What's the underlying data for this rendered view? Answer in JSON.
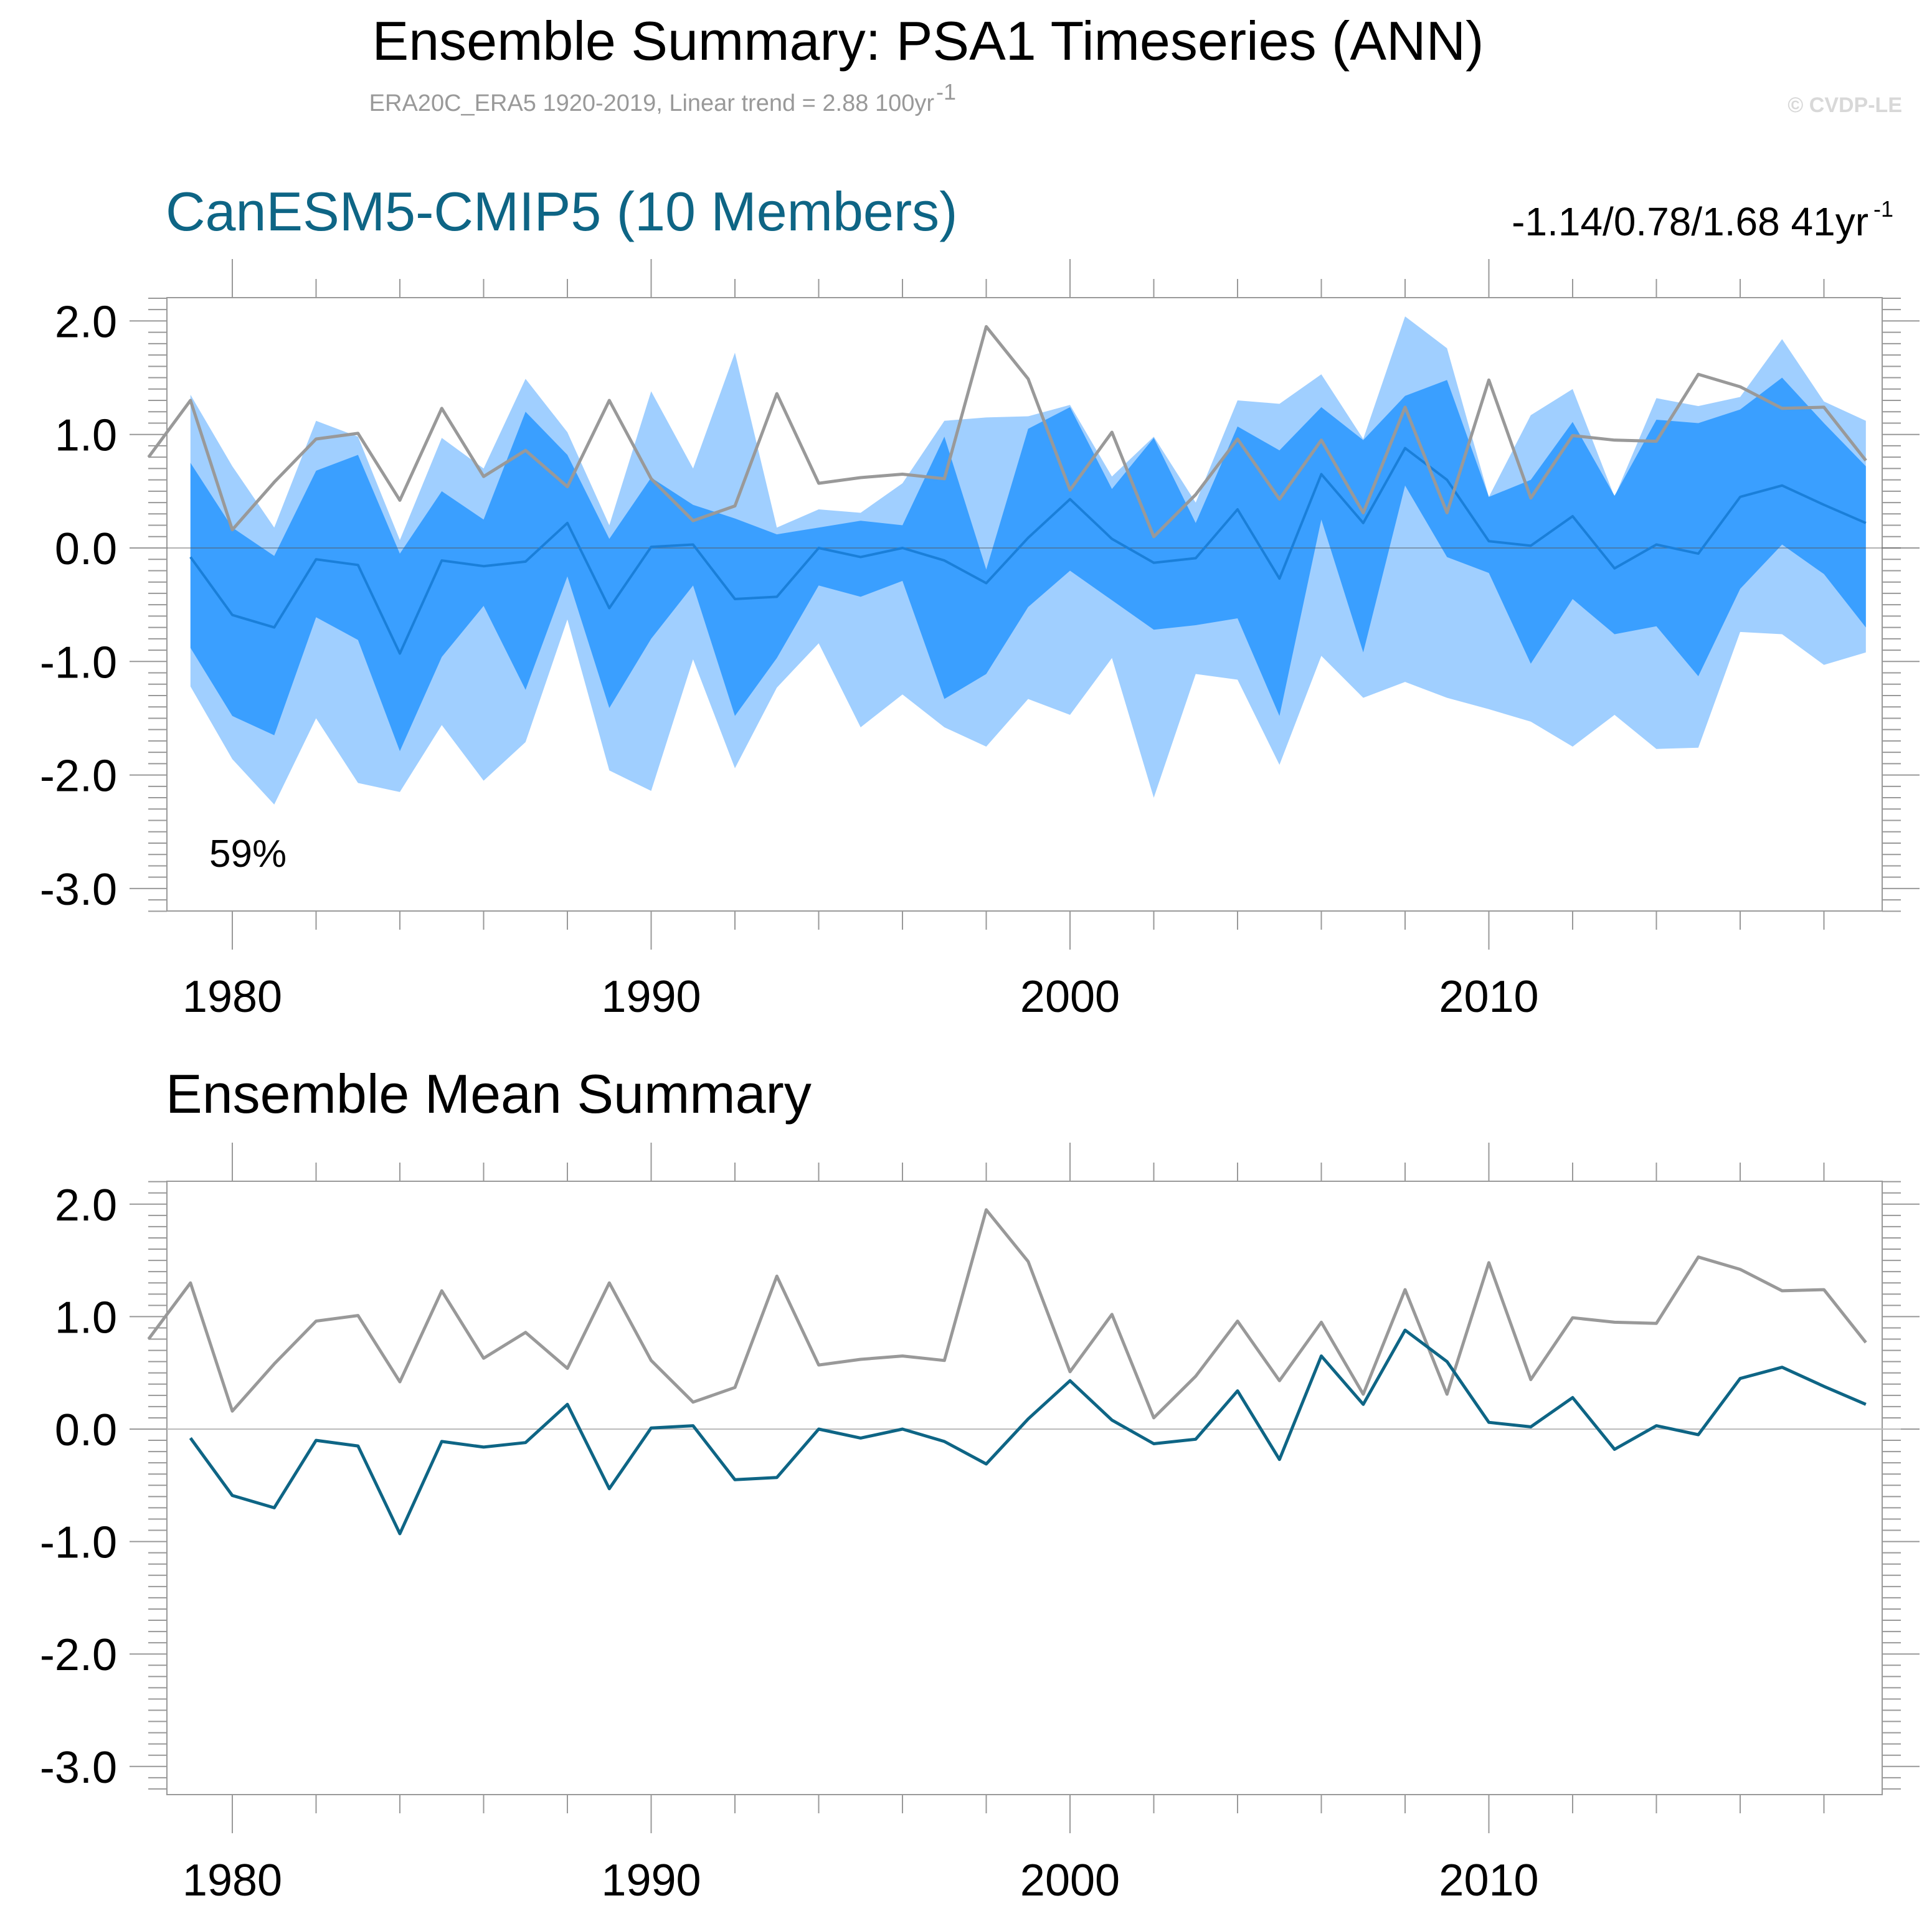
{
  "header": {
    "title": "Ensemble Summary: PSA1 Timeseries (ANN)",
    "subtitle": "ERA20C_ERA5 1920-2019, Linear trend = 2.88 100yr",
    "subtitle_sup": "-1",
    "copyright": "© CVDP-LE"
  },
  "panel1": {
    "title": "CanESM5-CMIP5 (10 Members)",
    "trend_stats": "-1.14/0.78/1.68 41yr",
    "trend_sup": "-1",
    "percent_label": "59%"
  },
  "panel2": {
    "title": "Ensemble Mean Summary"
  },
  "colors": {
    "outer_band": "#a0cfff",
    "inner_band": "#3a9fff",
    "ensemble_mean_panel1": "#1a7fd9",
    "ensemble_mean_panel2": "#0e6585",
    "observed": "#999999",
    "zero_line": "#bbbbbb",
    "frame": "#999999"
  },
  "chart_data": [
    {
      "type": "area",
      "title": "CanESM5-CMIP5 (10 Members)",
      "xlabel": "",
      "ylabel": "",
      "xlim": [
        1978,
        2019
      ],
      "ylim": [
        -3.2,
        2.2
      ],
      "xticks": [
        1980,
        1990,
        2000,
        2010
      ],
      "xtick_labels": [
        "1980",
        "1990",
        "2000",
        "2010"
      ],
      "yticks": [
        2,
        1,
        0,
        -1,
        -2,
        -3
      ],
      "ytick_labels": [
        "2.0",
        "1.0",
        "0.0",
        "-1.0",
        "-2.0",
        "-3.0"
      ],
      "years": [
        1979,
        1980,
        1981,
        1982,
        1983,
        1984,
        1985,
        1986,
        1987,
        1988,
        1989,
        1990,
        1991,
        1992,
        1993,
        1994,
        1995,
        1996,
        1997,
        1998,
        1999,
        2000,
        2001,
        2002,
        2003,
        2004,
        2005,
        2006,
        2007,
        2008,
        2009,
        2010,
        2011,
        2012,
        2013,
        2014,
        2015,
        2016,
        2017,
        2018,
        2019
      ],
      "series": [
        {
          "name": "ensemble max",
          "values": [
            1.35,
            0.72,
            0.18,
            1.12,
            0.98,
            0.07,
            0.97,
            0.7,
            1.49,
            1.02,
            0.2,
            1.38,
            0.7,
            1.72,
            0.18,
            0.34,
            0.31,
            0.57,
            1.12,
            1.15,
            1.16,
            1.26,
            0.63,
            0.98,
            0.4,
            1.3,
            1.27,
            1.53,
            0.96,
            2.04,
            1.76,
            0.45,
            1.17,
            1.4,
            0.45,
            1.32,
            1.25,
            1.33,
            1.84,
            1.29,
            1.12
          ]
        },
        {
          "name": "upper 90%",
          "values": [
            0.75,
            0.18,
            -0.07,
            0.68,
            0.82,
            -0.05,
            0.5,
            0.25,
            1.2,
            0.82,
            0.08,
            0.62,
            0.38,
            0.26,
            0.12,
            0.18,
            0.24,
            0.2,
            0.98,
            -0.19,
            1.05,
            1.24,
            0.52,
            0.97,
            0.22,
            1.07,
            0.86,
            1.24,
            0.95,
            1.34,
            1.48,
            0.45,
            0.6,
            1.11,
            0.46,
            1.13,
            1.1,
            1.22,
            1.5,
            1.1,
            0.72
          ]
        },
        {
          "name": "ensemble mean",
          "values": [
            -0.08,
            -0.59,
            -0.7,
            -0.1,
            -0.15,
            -0.93,
            -0.11,
            -0.16,
            -0.12,
            0.22,
            -0.53,
            0.01,
            0.03,
            -0.45,
            -0.43,
            0.0,
            -0.08,
            0.0,
            -0.11,
            -0.31,
            0.09,
            0.43,
            0.08,
            -0.13,
            -0.09,
            0.34,
            -0.27,
            0.65,
            0.22,
            0.88,
            0.6,
            0.06,
            0.02,
            0.28,
            -0.18,
            0.03,
            -0.05,
            0.45,
            0.55,
            0.38,
            0.22
          ]
        },
        {
          "name": "lower 10%",
          "values": [
            -0.88,
            -1.48,
            -1.65,
            -0.61,
            -0.81,
            -1.79,
            -0.96,
            -0.51,
            -1.25,
            -0.25,
            -1.41,
            -0.8,
            -0.33,
            -1.48,
            -0.97,
            -0.33,
            -0.43,
            -0.29,
            -1.33,
            -1.11,
            -0.52,
            -0.2,
            -0.46,
            -0.72,
            -0.68,
            -0.62,
            -1.48,
            0.25,
            -0.92,
            0.55,
            -0.08,
            -0.22,
            -1.02,
            -0.45,
            -0.76,
            -0.69,
            -1.13,
            -0.36,
            0.03,
            -0.23,
            -0.7
          ]
        },
        {
          "name": "ensemble min",
          "values": [
            -1.22,
            -1.86,
            -2.26,
            -1.5,
            -2.07,
            -2.15,
            -1.56,
            -2.05,
            -1.71,
            -0.63,
            -1.96,
            -2.14,
            -0.98,
            -1.94,
            -1.23,
            -0.84,
            -1.58,
            -1.29,
            -1.58,
            -1.75,
            -1.33,
            -1.47,
            -0.97,
            -2.2,
            -1.11,
            -1.16,
            -1.91,
            -0.95,
            -1.32,
            -1.18,
            -1.32,
            -1.42,
            -1.53,
            -1.75,
            -1.47,
            -1.77,
            -1.76,
            -0.74,
            -0.76,
            -1.03,
            -0.92
          ]
        },
        {
          "name": "observed (ERA20C_ERA5)",
          "x": [
            1978,
            1979,
            1980,
            1981,
            1982,
            1983,
            1984,
            1985,
            1986,
            1987,
            1988,
            1989,
            1990,
            1991,
            1992,
            1993,
            1994,
            1995,
            1996,
            1997,
            1998,
            1999,
            2000,
            2001,
            2002,
            2003,
            2004,
            2005,
            2006,
            2007,
            2008,
            2009,
            2010,
            2011,
            2012,
            2013,
            2014,
            2015,
            2016,
            2017,
            2018,
            2019
          ],
          "values": [
            0.8,
            1.3,
            0.16,
            0.58,
            0.96,
            1.01,
            0.42,
            1.23,
            0.63,
            0.86,
            0.54,
            1.3,
            0.61,
            0.24,
            0.37,
            1.36,
            0.57,
            0.62,
            0.65,
            0.61,
            1.95,
            1.49,
            0.51,
            1.02,
            0.1,
            0.47,
            0.96,
            0.43,
            0.95,
            0.31,
            1.24,
            0.31,
            1.48,
            0.44,
            0.99,
            0.95,
            0.94,
            1.53,
            1.42,
            1.23,
            1.24,
            0.77
          ]
        }
      ]
    },
    {
      "type": "line",
      "title": "Ensemble Mean Summary",
      "xlabel": "",
      "ylabel": "",
      "xlim": [
        1978,
        2019
      ],
      "ylim": [
        -3.2,
        2.2
      ],
      "xticks": [
        1980,
        1990,
        2000,
        2010
      ],
      "xtick_labels": [
        "1980",
        "1990",
        "2000",
        "2010"
      ],
      "yticks": [
        2,
        1,
        0,
        -1,
        -2,
        -3
      ],
      "ytick_labels": [
        "2.0",
        "1.0",
        "0.0",
        "-1.0",
        "-2.0",
        "-3.0"
      ],
      "series": [
        {
          "name": "observed (ERA20C_ERA5)",
          "x": [
            1978,
            1979,
            1980,
            1981,
            1982,
            1983,
            1984,
            1985,
            1986,
            1987,
            1988,
            1989,
            1990,
            1991,
            1992,
            1993,
            1994,
            1995,
            1996,
            1997,
            1998,
            1999,
            2000,
            2001,
            2002,
            2003,
            2004,
            2005,
            2006,
            2007,
            2008,
            2009,
            2010,
            2011,
            2012,
            2013,
            2014,
            2015,
            2016,
            2017,
            2018,
            2019
          ],
          "values": [
            0.8,
            1.3,
            0.16,
            0.58,
            0.96,
            1.01,
            0.42,
            1.23,
            0.63,
            0.86,
            0.54,
            1.3,
            0.61,
            0.24,
            0.37,
            1.36,
            0.57,
            0.62,
            0.65,
            0.61,
            1.95,
            1.49,
            0.51,
            1.02,
            0.1,
            0.47,
            0.96,
            0.43,
            0.95,
            0.31,
            1.24,
            0.31,
            1.48,
            0.44,
            0.99,
            0.95,
            0.94,
            1.53,
            1.42,
            1.23,
            1.24,
            0.77
          ]
        },
        {
          "name": "CanESM5-CMIP5 ensemble mean",
          "x": [
            1979,
            1980,
            1981,
            1982,
            1983,
            1984,
            1985,
            1986,
            1987,
            1988,
            1989,
            1990,
            1991,
            1992,
            1993,
            1994,
            1995,
            1996,
            1997,
            1998,
            1999,
            2000,
            2001,
            2002,
            2003,
            2004,
            2005,
            2006,
            2007,
            2008,
            2009,
            2010,
            2011,
            2012,
            2013,
            2014,
            2015,
            2016,
            2017,
            2018,
            2019
          ],
          "values": [
            -0.08,
            -0.59,
            -0.7,
            -0.1,
            -0.15,
            -0.93,
            -0.11,
            -0.16,
            -0.12,
            0.22,
            -0.53,
            0.01,
            0.03,
            -0.45,
            -0.43,
            0.0,
            -0.08,
            0.0,
            -0.11,
            -0.31,
            0.09,
            0.43,
            0.08,
            -0.13,
            -0.09,
            0.34,
            -0.27,
            0.65,
            0.22,
            0.88,
            0.6,
            0.06,
            0.02,
            0.28,
            -0.18,
            0.03,
            -0.05,
            0.45,
            0.55,
            0.38,
            0.22
          ]
        }
      ]
    }
  ]
}
